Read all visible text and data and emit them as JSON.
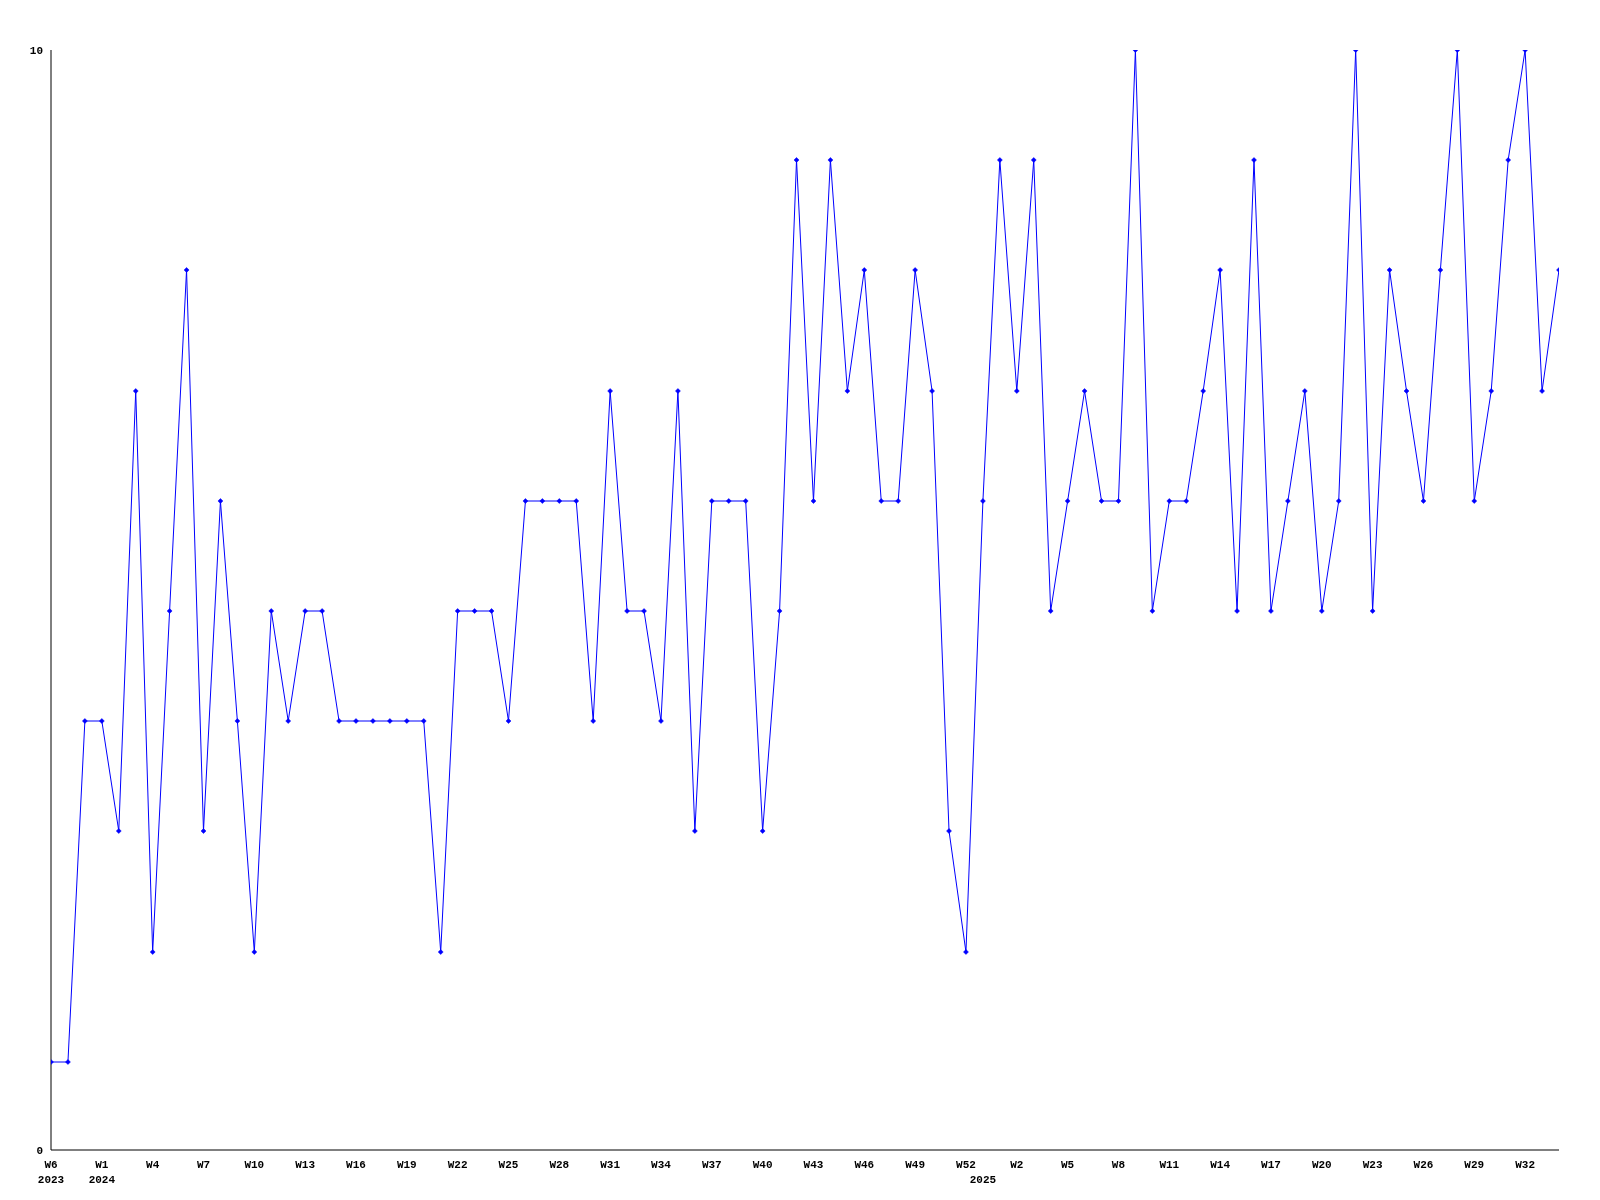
{
  "chart_data": {
    "type": "line",
    "categories": [
      "W6\n2023",
      null,
      null,
      "W1\n2024",
      null,
      null,
      "W4",
      null,
      null,
      "W7",
      null,
      null,
      "W10",
      null,
      null,
      "W13",
      null,
      null,
      "W16",
      null,
      null,
      "W19",
      null,
      null,
      "W22",
      null,
      null,
      "W25",
      null,
      null,
      "W28",
      null,
      null,
      "W31",
      null,
      null,
      "W34",
      null,
      null,
      "W37",
      null,
      null,
      "W40",
      null,
      null,
      "W43",
      null,
      null,
      "W46",
      null,
      null,
      "W49",
      null,
      null,
      "W52",
      "\n2025",
      null,
      "W2",
      null,
      null,
      "W5",
      null,
      null,
      "W8",
      null,
      null,
      "W11",
      null,
      null,
      "W14",
      null,
      null,
      "W17",
      null,
      null,
      "W20",
      null,
      null,
      "W23",
      null,
      null,
      "W26",
      null,
      null,
      "W29",
      null,
      null,
      "W32",
      null,
      null
    ],
    "series": [
      {
        "color": "#0000ff",
        "values": [
          0.8,
          0.8,
          3.9,
          3.9,
          2.9,
          6.9,
          1.8,
          4.9,
          8.0,
          2.9,
          5.9,
          3.9,
          1.8,
          4.9,
          3.9,
          4.9,
          4.9,
          3.9,
          3.9,
          3.9,
          3.9,
          3.9,
          3.9,
          1.8,
          4.9,
          4.9,
          4.9,
          3.9,
          5.9,
          5.9,
          5.9,
          5.9,
          3.9,
          6.9,
          4.9,
          4.9,
          3.9,
          6.9,
          2.9,
          5.9,
          5.9,
          5.9,
          2.9,
          4.9,
          9.0,
          5.9,
          9.0,
          6.9,
          8.0,
          5.9,
          5.9,
          8.0,
          6.9,
          2.9,
          1.8,
          5.9,
          9.0,
          6.9,
          9.0,
          4.9,
          5.9,
          6.9,
          5.9,
          5.9,
          10,
          4.9,
          5.9,
          5.9,
          6.9,
          8.0,
          4.9,
          9.0,
          4.9,
          5.9,
          6.9,
          4.9,
          5.9,
          10,
          4.9,
          8.0,
          6.9,
          5.9,
          8.0,
          10,
          5.9,
          6.9,
          9.0,
          10,
          6.9,
          8.0
        ]
      }
    ],
    "ylim": [
      0,
      10
    ],
    "yticks": [
      0,
      10
    ],
    "grid": false,
    "marker": "diamond",
    "line_style": "solid"
  }
}
